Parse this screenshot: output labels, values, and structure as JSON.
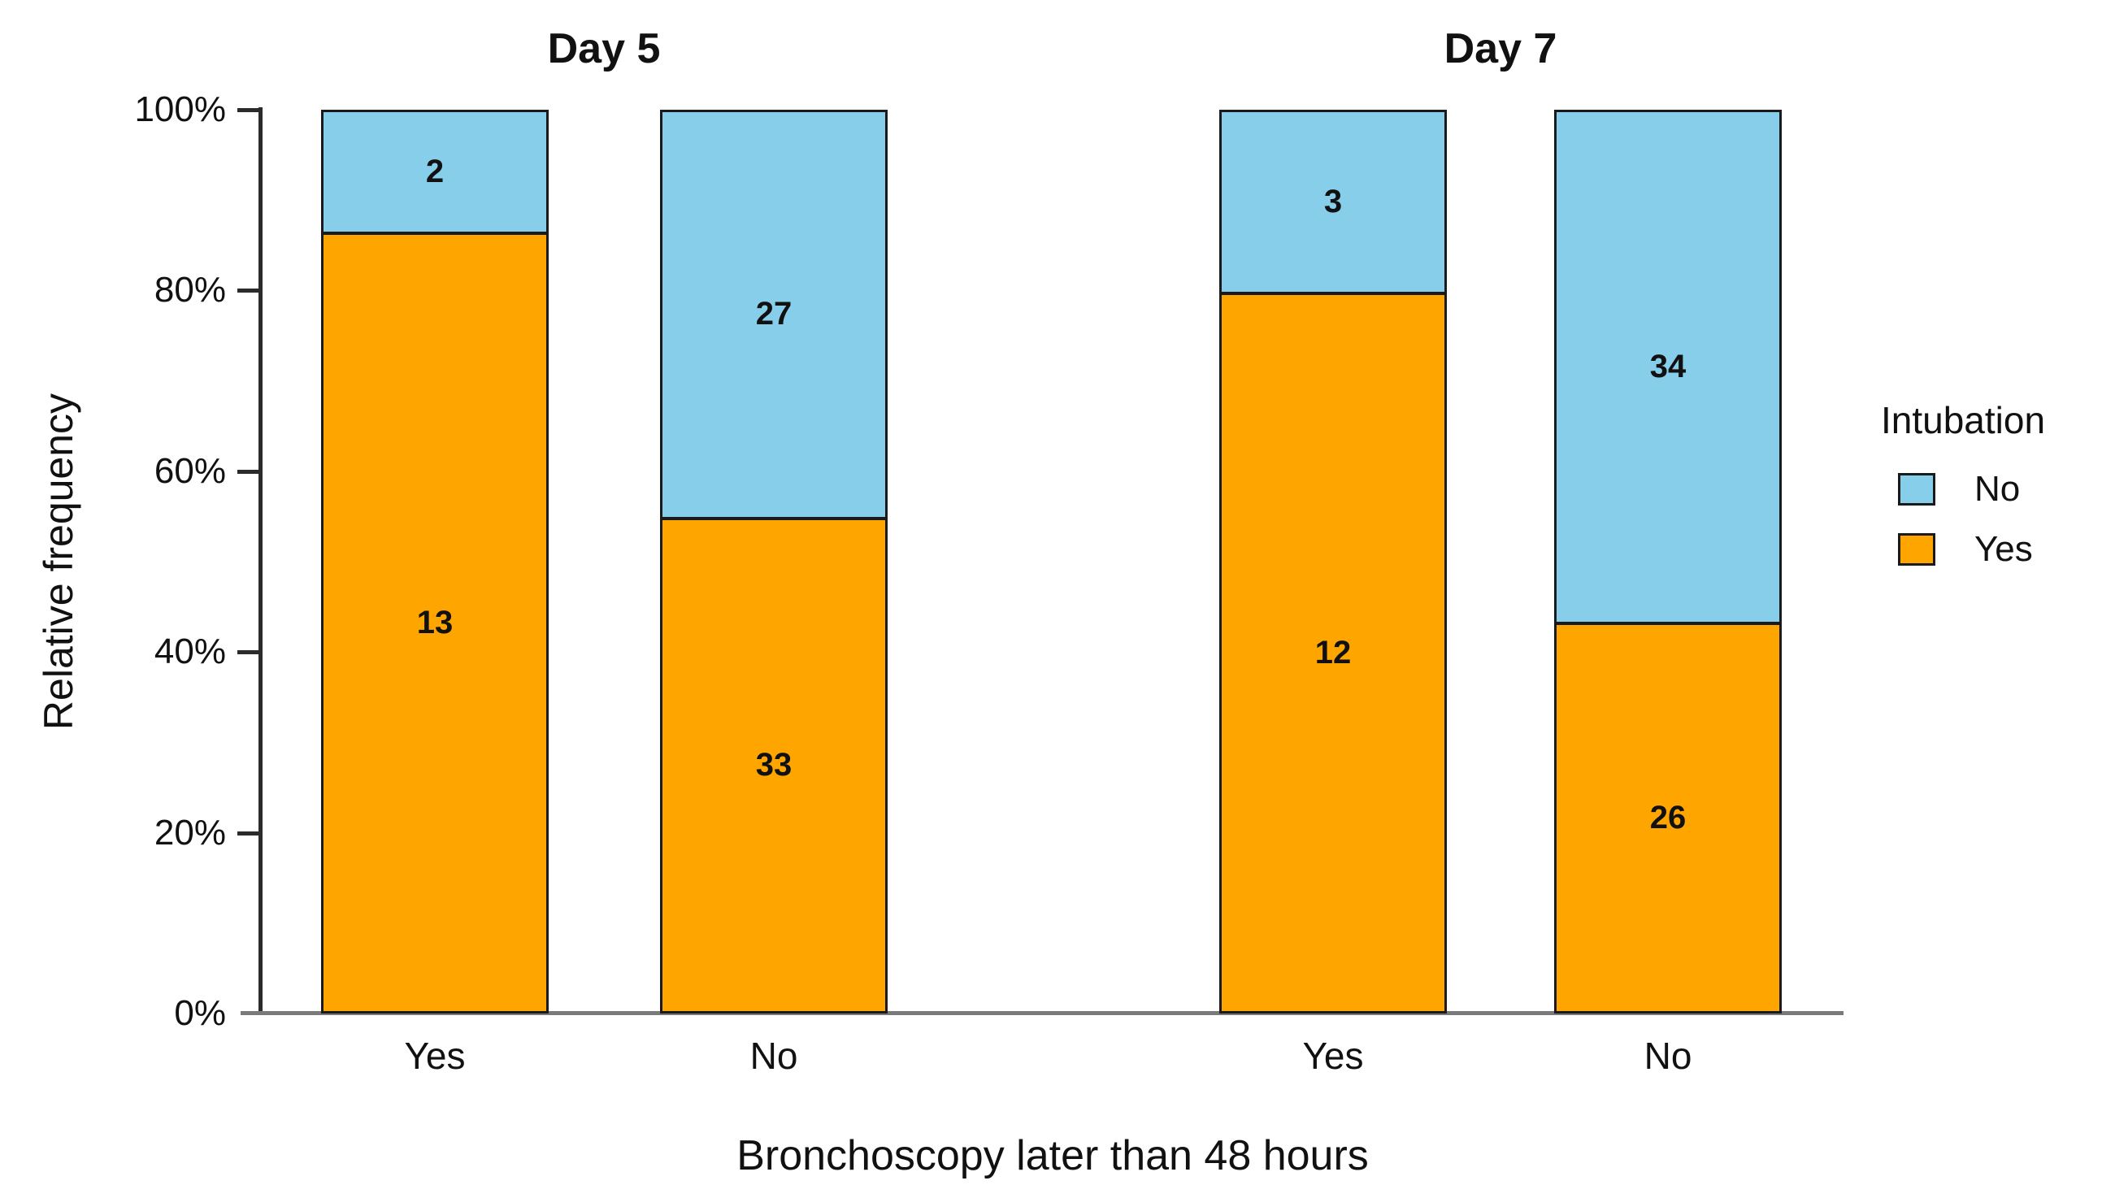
{
  "chart_data": {
    "type": "bar",
    "variant": "100-percent-stacked, faceted",
    "title": "",
    "xlabel": "Bronchoscopy later than 48 hours",
    "ylabel": "Relative frequency",
    "y_ticks": [
      "0%",
      "20%",
      "40%",
      "60%",
      "80%",
      "100%"
    ],
    "ylim": [
      0,
      100
    ],
    "grid": false,
    "series_order_top_to_bottom": [
      "No",
      "Yes"
    ],
    "series_colors": {
      "No": "#87CEEB",
      "Yes": "#FFA500"
    },
    "legend": {
      "title": "Intubation",
      "position": "right",
      "entries": [
        {
          "label": "No",
          "color": "#87CEEB"
        },
        {
          "label": "Yes",
          "color": "#FFA500"
        }
      ]
    },
    "facets": [
      {
        "title": "Day 5",
        "bars": [
          {
            "category": "Yes",
            "segments": [
              {
                "series": "No",
                "count": 2
              },
              {
                "series": "Yes",
                "count": 13
              }
            ]
          },
          {
            "category": "No",
            "segments": [
              {
                "series": "No",
                "count": 27
              },
              {
                "series": "Yes",
                "count": 33
              }
            ]
          }
        ]
      },
      {
        "title": "Day 7",
        "bars": [
          {
            "category": "Yes",
            "segments": [
              {
                "series": "No",
                "count": 3
              },
              {
                "series": "Yes",
                "count": 12
              }
            ]
          },
          {
            "category": "No",
            "segments": [
              {
                "series": "No",
                "count": 34
              },
              {
                "series": "Yes",
                "count": 26
              }
            ]
          }
        ]
      }
    ],
    "styles": {
      "bar_border_color": "#1a1a1a",
      "axis_color": "#2b2b2b",
      "baseline_color": "#7a7a7a",
      "text_color": "#111111",
      "background": "#ffffff"
    }
  }
}
